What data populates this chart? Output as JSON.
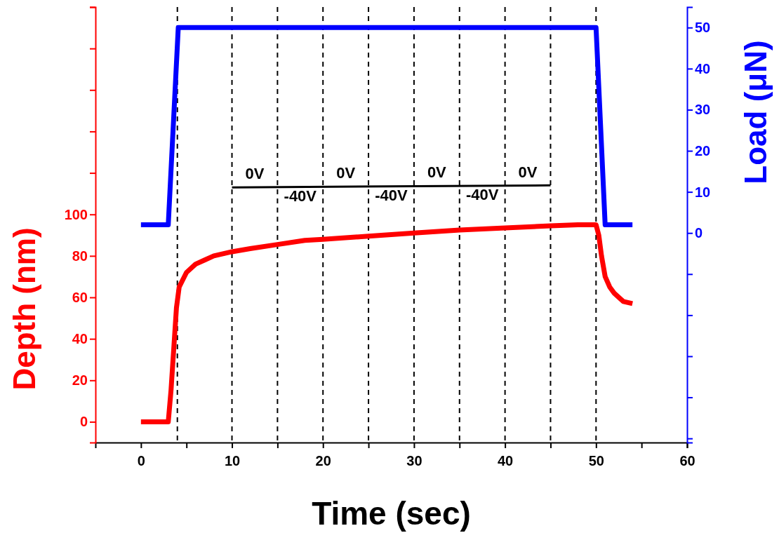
{
  "chart_data": {
    "type": "line",
    "xlabel": "Time (sec)",
    "ylabel": "Depth (nm)",
    "y2label": "Load (μN)",
    "xlim": [
      -5,
      60
    ],
    "xticks": [
      0,
      {
        "value": 5,
        "label": null
      },
      10,
      {
        "value": 15,
        "label": null
      },
      20,
      {
        "value": 25,
        "label": null
      },
      30,
      {
        "value": 35,
        "label": null
      },
      40,
      {
        "value": 45,
        "label": null
      },
      50,
      {
        "value": 55,
        "label": null
      },
      60
    ],
    "ylim": [
      -10,
      200
    ],
    "yticks": [
      0,
      20,
      40,
      60,
      80,
      100,
      {
        "value": 120,
        "label": null
      },
      {
        "value": 140,
        "label": null
      },
      {
        "value": 160,
        "label": null
      },
      {
        "value": 180,
        "label": null
      },
      {
        "value": 200,
        "label": null
      }
    ],
    "y2lim": [
      -51,
      55
    ],
    "y2ticks": [
      {
        "value": -50,
        "label": null
      },
      {
        "value": -40,
        "label": null
      },
      {
        "value": -30,
        "label": null
      },
      {
        "value": -20,
        "label": null
      },
      {
        "value": -10,
        "label": null
      },
      0,
      10,
      20,
      30,
      40,
      50
    ],
    "grid": false,
    "series": [
      {
        "color": "#ff0000",
        "x": [
          0,
          1,
          2,
          3,
          3.3,
          3.6,
          3.9,
          4.2,
          5,
          6,
          7,
          8,
          10,
          12,
          15,
          18,
          20,
          25,
          30,
          35,
          40,
          45,
          48,
          50,
          50.3,
          50.6,
          51,
          51.5,
          52,
          53,
          54
        ],
        "values": [
          0,
          0,
          0,
          0,
          15,
          35,
          55,
          65,
          72,
          76,
          78,
          80,
          82,
          83.5,
          85.5,
          87.5,
          88,
          89.5,
          91,
          92.5,
          93.5,
          94.5,
          95,
          95,
          90,
          80,
          70,
          65,
          62,
          58,
          57
        ]
      },
      {
        "color": "#0000ff",
        "axis": "y2",
        "x": [
          0,
          3,
          4.1,
          50,
          51,
          54
        ],
        "values": [
          2,
          2,
          50,
          50,
          2,
          2
        ]
      },
      {
        "color": "#000000",
        "x": [
          10,
          45
        ],
        "values": [
          113,
          114
        ]
      }
    ],
    "ref_lines": [
      {
        "axis": "x",
        "value": 4,
        "line_style": "dashed",
        "color": "#000000"
      },
      {
        "axis": "x",
        "value": 10,
        "line_style": "dashed",
        "color": "#000000"
      },
      {
        "axis": "x",
        "value": 15,
        "line_style": "dashed",
        "color": "#000000"
      },
      {
        "axis": "x",
        "value": 20,
        "line_style": "dashed",
        "color": "#000000"
      },
      {
        "axis": "x",
        "value": 25,
        "line_style": "dashed",
        "color": "#000000"
      },
      {
        "axis": "x",
        "value": 30,
        "line_style": "dashed",
        "color": "#000000"
      },
      {
        "axis": "x",
        "value": 35,
        "line_style": "dashed",
        "color": "#000000"
      },
      {
        "axis": "x",
        "value": 40,
        "line_style": "dashed",
        "color": "#000000"
      },
      {
        "axis": "x",
        "value": 45,
        "line_style": "dashed",
        "color": "#000000"
      },
      {
        "axis": "x",
        "value": 50,
        "line_style": "dashed",
        "color": "#000000"
      }
    ],
    "annotations": [
      "0V",
      "-40V",
      "0V",
      "-40V",
      "0V",
      "-40V",
      "0V"
    ]
  }
}
